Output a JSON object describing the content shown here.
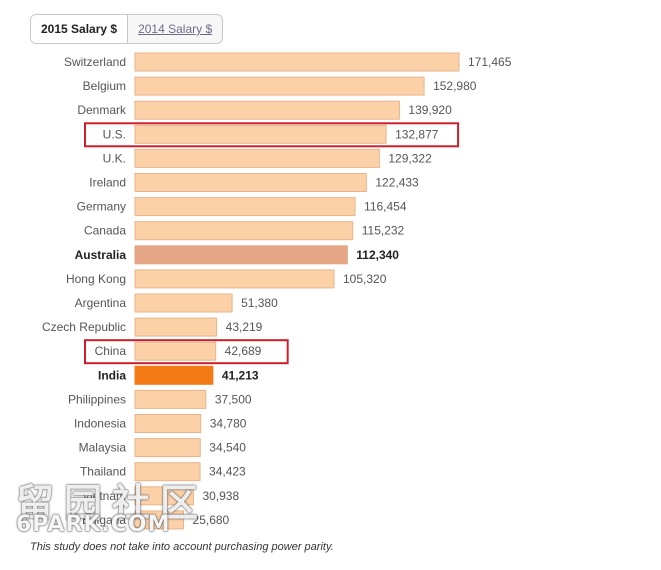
{
  "tabs": [
    {
      "label": "2015 Salary $",
      "active": true
    },
    {
      "label": "2014 Salary $",
      "active": false
    }
  ],
  "chart_data": {
    "type": "bar",
    "orientation": "horizontal",
    "categories": [
      "Switzerland",
      "Belgium",
      "Denmark",
      "U.S.",
      "U.K.",
      "Ireland",
      "Germany",
      "Canada",
      "Australia",
      "Hong Kong",
      "Argentina",
      "Czech Republic",
      "China",
      "India",
      "Philippines",
      "Indonesia",
      "Malaysia",
      "Thailand",
      "Vietnam",
      "Bulgaria"
    ],
    "values": [
      171465,
      152980,
      139920,
      132877,
      129322,
      122433,
      116454,
      115232,
      112340,
      105320,
      51380,
      43219,
      42689,
      41213,
      37500,
      34780,
      34540,
      34423,
      30938,
      25680
    ],
    "value_labels": [
      "171,465",
      "152,980",
      "139,920",
      "132,877",
      "129,322",
      "122,433",
      "116,454",
      "115,232",
      "112,340",
      "105,320",
      "51,380",
      "43,219",
      "42,689",
      "41,213",
      "37,500",
      "34,780",
      "34,540",
      "34,423",
      "30,938",
      "25,680"
    ],
    "bold_categories": [
      "Australia",
      "India"
    ],
    "highlighted_boxes": [
      "U.S.",
      "China"
    ],
    "colors": {
      "default": "#fdd1a7",
      "default_border": "#e8b48a",
      "Australia": "#e3a583",
      "India": "#f47a16",
      "highlight_box": "#cc1f2a"
    },
    "xlim": [
      0,
      171465
    ]
  },
  "footnote": "This study does not take into account purchasing power parity.",
  "watermark": {
    "cn": "留园社区",
    "en": "6PARK.COM"
  }
}
